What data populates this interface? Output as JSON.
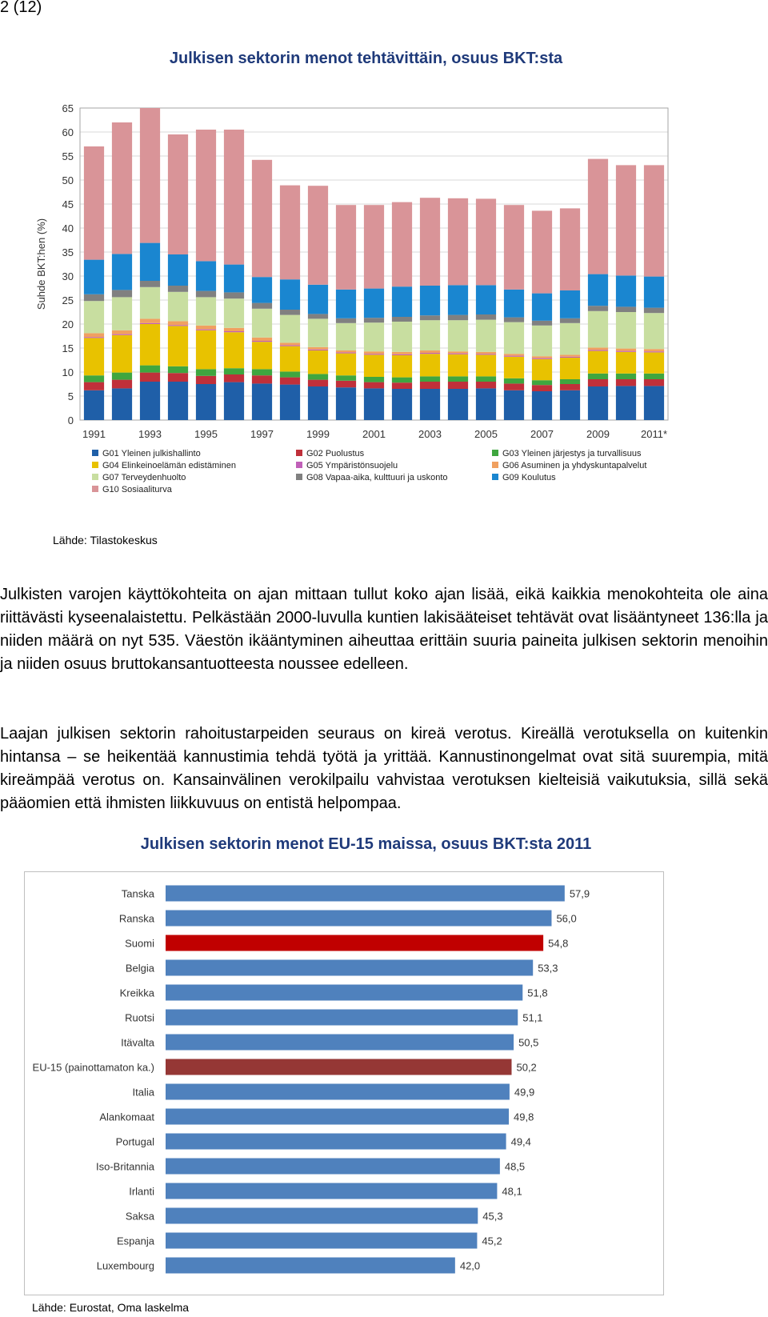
{
  "page_number": "2 (12)",
  "text": {
    "para1": "Julkisten varojen käyttökohteita on ajan mittaan tullut koko ajan lisää, eikä kaikkia menokohteita ole aina riittävästi kyseenalaistettu. Pelkästään 2000-luvulla kuntien lakisääteiset tehtävät ovat lisääntyneet 136:lla ja niiden määrä on nyt 535. Väestön ikääntyminen aiheuttaa erittäin suuria paineita julkisen sektorin menoihin ja niiden osuus bruttokansantuotteesta noussee edelleen.",
    "para2": "Laajan julkisen sektorin rahoitustarpeiden seuraus on kireä verotus. Kireällä verotuksella on kuitenkin hintansa – se heikentää kannustimia tehdä työtä ja yrittää. Kannustinongelmat ovat sitä suurempia, mitä kireämpää verotus on. Kansainvälinen verokilpailu vahvistaa verotuksen kielteisiä vaikutuksia, sillä sekä pääomien että ihmisten liikkuvuus on entistä helpompaa."
  },
  "chart_data": [
    {
      "type": "bar",
      "stacked": true,
      "title": "Julkisen sektorin menot tehtävittäin, osuus BKT:sta",
      "ylabel": "Suhde BKT:hen (%)",
      "ylim": [
        0,
        65
      ],
      "yticks": [
        0,
        5,
        10,
        15,
        20,
        25,
        30,
        35,
        40,
        45,
        50,
        55,
        60,
        65
      ],
      "categories": [
        "1991",
        "1992",
        "1993",
        "1994",
        "1995",
        "1996",
        "1997",
        "1998",
        "1999",
        "2000",
        "2001",
        "2002",
        "2003",
        "2004",
        "2005",
        "2006",
        "2007",
        "2008",
        "2009",
        "2010",
        "2011*"
      ],
      "tick_labels": [
        "1991",
        "",
        "1993",
        "",
        "1995",
        "",
        "1997",
        "",
        "1999",
        "",
        "2001",
        "",
        "2003",
        "",
        "2005",
        "",
        "2007",
        "",
        "2009",
        "",
        "2011*"
      ],
      "grid": true,
      "legend_position": "bottom",
      "source": "Lähde: Tilastokeskus",
      "series": [
        {
          "name": "G01 Yleinen julkishallinto",
          "color": "#1f5fa8",
          "values": [
            6.2,
            6.6,
            8.0,
            8.0,
            7.5,
            7.9,
            7.6,
            7.4,
            7.0,
            6.8,
            6.6,
            6.5,
            6.5,
            6.5,
            6.6,
            6.2,
            6.0,
            6.2,
            7.0,
            7.1,
            7.1
          ]
        },
        {
          "name": "G02 Puolustus",
          "color": "#c0303a",
          "values": [
            1.7,
            1.8,
            1.9,
            1.8,
            1.7,
            1.6,
            1.7,
            1.5,
            1.4,
            1.4,
            1.3,
            1.3,
            1.5,
            1.5,
            1.4,
            1.4,
            1.3,
            1.3,
            1.5,
            1.4,
            1.4
          ]
        },
        {
          "name": "G03 Yleinen järjestys ja turvallisuus",
          "color": "#3fa63f",
          "values": [
            1.4,
            1.5,
            1.5,
            1.4,
            1.4,
            1.3,
            1.3,
            1.2,
            1.2,
            1.1,
            1.1,
            1.1,
            1.1,
            1.1,
            1.1,
            1.1,
            1.0,
            1.0,
            1.2,
            1.2,
            1.2
          ]
        },
        {
          "name": "G04 Elinkeinoelämän edistäminen",
          "color": "#e8c200",
          "values": [
            7.8,
            7.8,
            8.6,
            8.4,
            8.1,
            7.5,
            5.7,
            5.3,
            4.9,
            4.6,
            4.6,
            4.6,
            4.7,
            4.6,
            4.5,
            4.5,
            4.4,
            4.5,
            4.7,
            4.5,
            4.4
          ]
        },
        {
          "name": "G05 Ympäristönsuojelu",
          "color": "#c060b8",
          "values": [
            0.2,
            0.2,
            0.2,
            0.2,
            0.2,
            0.2,
            0.2,
            0.2,
            0.2,
            0.2,
            0.2,
            0.2,
            0.2,
            0.2,
            0.2,
            0.2,
            0.2,
            0.2,
            0.2,
            0.2,
            0.2
          ]
        },
        {
          "name": "G06 Asuminen ja yhdyskuntapalvelut",
          "color": "#f0a060",
          "values": [
            0.8,
            0.8,
            0.9,
            0.8,
            0.8,
            0.7,
            0.7,
            0.5,
            0.5,
            0.4,
            0.5,
            0.5,
            0.5,
            0.4,
            0.4,
            0.4,
            0.4,
            0.4,
            0.5,
            0.5,
            0.5
          ]
        },
        {
          "name": "G07 Terveydenhuolto",
          "color": "#c8dea0",
          "values": [
            6.7,
            6.9,
            6.6,
            6.1,
            5.9,
            6.1,
            6.0,
            5.8,
            5.9,
            5.7,
            6.0,
            6.3,
            6.3,
            6.5,
            6.7,
            6.6,
            6.4,
            6.6,
            7.6,
            7.6,
            7.5
          ]
        },
        {
          "name": "G08 Vapaa-aika, kulttuuri ja uskonto",
          "color": "#808080",
          "values": [
            1.4,
            1.5,
            1.3,
            1.3,
            1.3,
            1.3,
            1.2,
            1.1,
            1.0,
            1.0,
            1.0,
            1.0,
            1.0,
            1.1,
            1.1,
            1.0,
            1.0,
            1.0,
            1.1,
            1.1,
            1.1
          ]
        },
        {
          "name": "G09 Koulutus",
          "color": "#1a86d0",
          "values": [
            7.2,
            7.5,
            7.9,
            6.5,
            6.2,
            5.8,
            5.4,
            6.3,
            6.1,
            6.0,
            6.1,
            6.3,
            6.2,
            6.2,
            6.1,
            5.8,
            5.7,
            5.8,
            6.6,
            6.5,
            6.5
          ]
        },
        {
          "name": "G10 Sosiaaliturva",
          "color": "#d99498",
          "values": [
            23.6,
            27.4,
            28.1,
            25.0,
            27.4,
            28.1,
            24.4,
            19.6,
            20.6,
            17.6,
            17.4,
            17.6,
            18.3,
            18.1,
            18.0,
            17.6,
            17.2,
            17.1,
            24.0,
            23.0,
            23.2
          ]
        }
      ]
    },
    {
      "type": "bar",
      "orientation": "horizontal",
      "title": "Julkisen sektorin menot EU-15 maissa, osuus BKT:sta 2011",
      "source": "Lähde: Eurostat, Oma laskelma",
      "xlim": [
        0,
        65
      ],
      "categories": [
        "Tanska",
        "Ranska",
        "Suomi",
        "Belgia",
        "Kreikka",
        "Ruotsi",
        "Itävalta",
        "EU-15 (painottamaton ka.)",
        "Italia",
        "Alankomaat",
        "Portugal",
        "Iso-Britannia",
        "Irlanti",
        "Saksa",
        "Espanja",
        "Luxembourg"
      ],
      "values": [
        57.9,
        56.0,
        54.8,
        53.3,
        51.8,
        51.1,
        50.5,
        50.2,
        49.9,
        49.8,
        49.4,
        48.5,
        48.1,
        45.3,
        45.2,
        42.0
      ],
      "value_labels": [
        "57,9",
        "56,0",
        "54,8",
        "53,3",
        "51,8",
        "51,1",
        "50,5",
        "50,2",
        "49,9",
        "49,8",
        "49,4",
        "48,5",
        "48,1",
        "45,3",
        "45,2",
        "42,0"
      ],
      "colors": {
        "default": "#4f81bd",
        "Suomi": "#c00000",
        "EU-15 (painottamaton ka.)": "#953735"
      }
    }
  ]
}
